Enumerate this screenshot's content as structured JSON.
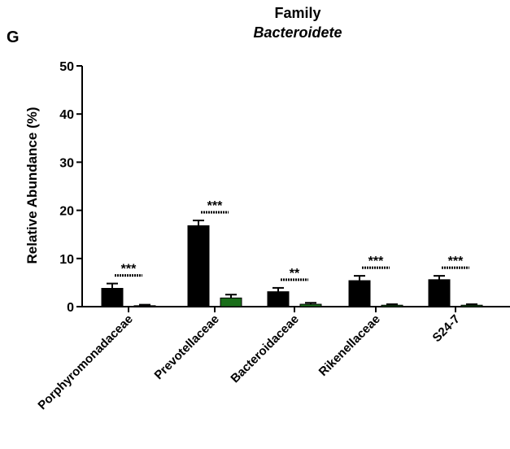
{
  "panel_label": "G",
  "chart_data": {
    "type": "bar",
    "title": "Family",
    "subtitle": "Bacteroidete",
    "ylabel": "Relative Abundance (%)",
    "xlabel": "",
    "ylim": [
      0,
      50
    ],
    "yticks": [
      0,
      10,
      20,
      30,
      40,
      50
    ],
    "categories": [
      "Porphyromonadaceae",
      "Prevotellaceae",
      "Bacteroidaceae",
      "Rikenellaceae",
      "S24-7"
    ],
    "series": [
      {
        "color": "#000000",
        "values": [
          3.8,
          16.8,
          3.1,
          5.4,
          5.6
        ],
        "errors": [
          1.0,
          1.1,
          0.8,
          1.0,
          0.8
        ]
      },
      {
        "color": "#1a6e1a",
        "values": [
          0.2,
          1.8,
          0.5,
          0.3,
          0.3
        ],
        "errors": [
          0.2,
          0.7,
          0.3,
          0.2,
          0.2
        ]
      }
    ],
    "significance": [
      "***",
      "***",
      "**",
      "***",
      "***"
    ],
    "grid": false,
    "legend": "none"
  }
}
